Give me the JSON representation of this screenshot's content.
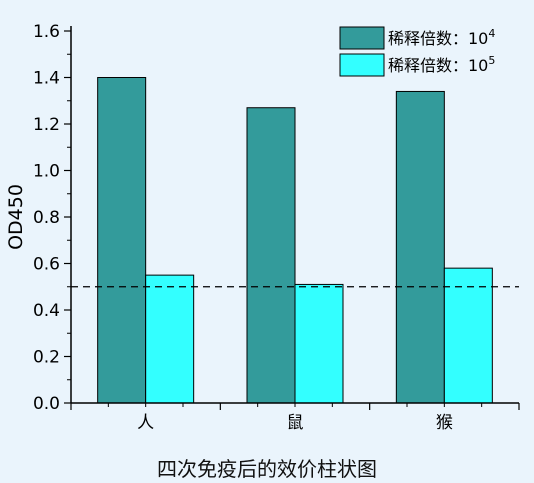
{
  "chart_data": {
    "type": "bar",
    "categories": [
      "人",
      "鼠",
      "猴"
    ],
    "series": [
      {
        "name": "稀释倍数：10",
        "exponent": "4",
        "values": [
          1.4,
          1.27,
          1.34
        ],
        "color": "#339b9b"
      },
      {
        "name": "稀释倍数：10",
        "exponent": "5",
        "values": [
          0.55,
          0.51,
          0.58
        ],
        "color": "#33ffff"
      }
    ],
    "title": "四次免疫后的效价柱状图",
    "xlabel": "",
    "ylabel": "OD450",
    "ylim": [
      0,
      1.6
    ],
    "yticks": [
      0.0,
      0.2,
      0.4,
      0.6,
      0.8,
      1.0,
      1.2,
      1.4,
      1.6
    ],
    "ytick_labels": [
      "0.0",
      "0.2",
      "0.4",
      "0.6",
      "0.8",
      "1.0",
      "1.2",
      "1.4",
      "1.6"
    ],
    "reference_line": {
      "y": 0.5,
      "style": "dashed"
    },
    "legend_position": "top-right",
    "grid": false
  }
}
